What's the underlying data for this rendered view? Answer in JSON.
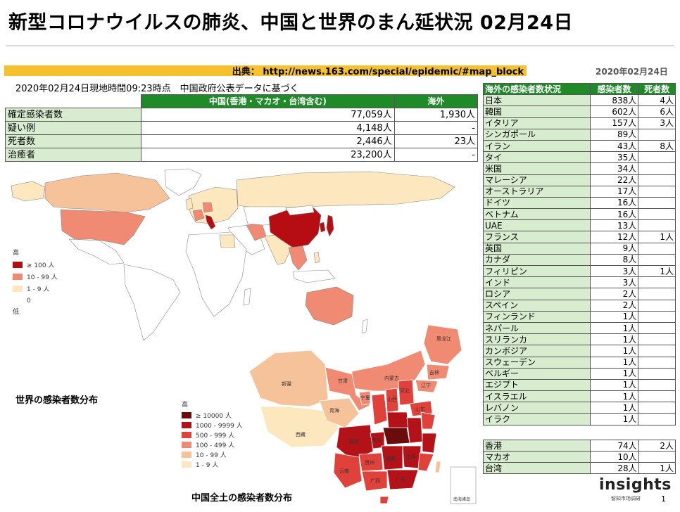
{
  "title": "新型コロナウイルスの肺炎、中国と世界のまん延状況 02月24日",
  "source": "出典： http://news.163.com/special/epidemic/#map_block",
  "date": "2020年02月24日",
  "subnote": "2020年02月24日現地時間09:23時点　中国政府公表データに基づく",
  "china_table": {
    "headers": [
      "中国(香港・マカオ・台湾含む)",
      "海外"
    ],
    "rows": [
      {
        "label": "確定感染者数",
        "china": "77,059人",
        "overseas": "1,930人"
      },
      {
        "label": "疑い例",
        "china": "4,148人",
        "overseas": "-"
      },
      {
        "label": "死者数",
        "china": "2,446人",
        "overseas": "23人"
      },
      {
        "label": "治癒者",
        "china": "23,200人",
        "overseas": "-"
      }
    ]
  },
  "world_table": {
    "headers": [
      "海外の感染者数状況",
      "感染者数",
      "死者数"
    ],
    "rows": [
      {
        "country": "日本",
        "cases": "838人",
        "deaths": "4人"
      },
      {
        "country": "韓国",
        "cases": "602人",
        "deaths": "6人"
      },
      {
        "country": "イタリア",
        "cases": "157人",
        "deaths": "3人"
      },
      {
        "country": "シンガポール",
        "cases": "89人",
        "deaths": ""
      },
      {
        "country": "イラン",
        "cases": "43人",
        "deaths": "8人"
      },
      {
        "country": "タイ",
        "cases": "35人",
        "deaths": ""
      },
      {
        "country": "米国",
        "cases": "34人",
        "deaths": ""
      },
      {
        "country": "マレーシア",
        "cases": "22人",
        "deaths": ""
      },
      {
        "country": "オーストラリア",
        "cases": "17人",
        "deaths": ""
      },
      {
        "country": "ドイツ",
        "cases": "16人",
        "deaths": ""
      },
      {
        "country": "ベトナム",
        "cases": "16人",
        "deaths": ""
      },
      {
        "country": "UAE",
        "cases": "13人",
        "deaths": ""
      },
      {
        "country": "フランス",
        "cases": "12人",
        "deaths": "1人"
      },
      {
        "country": "英国",
        "cases": "9人",
        "deaths": ""
      },
      {
        "country": "カナダ",
        "cases": "8人",
        "deaths": ""
      },
      {
        "country": "フィリピン",
        "cases": "3人",
        "deaths": "1人"
      },
      {
        "country": "インド",
        "cases": "3人",
        "deaths": ""
      },
      {
        "country": "ロシア",
        "cases": "2人",
        "deaths": ""
      },
      {
        "country": "スペイン",
        "cases": "2人",
        "deaths": ""
      },
      {
        "country": "フィンランド",
        "cases": "1人",
        "deaths": ""
      },
      {
        "country": "ネパール",
        "cases": "1人",
        "deaths": ""
      },
      {
        "country": "スリランカ",
        "cases": "1人",
        "deaths": ""
      },
      {
        "country": "カンボジア",
        "cases": "1人",
        "deaths": ""
      },
      {
        "country": "スウェーデン",
        "cases": "1人",
        "deaths": ""
      },
      {
        "country": "ベルギー",
        "cases": "1人",
        "deaths": ""
      },
      {
        "country": "エジプト",
        "cases": "1人",
        "deaths": ""
      },
      {
        "country": "イスラエル",
        "cases": "1人",
        "deaths": ""
      },
      {
        "country": "レバノン",
        "cases": "1人",
        "deaths": ""
      },
      {
        "country": "イラク",
        "cases": "1人",
        "deaths": ""
      }
    ]
  },
  "hk_table": {
    "rows": [
      {
        "region": "香港",
        "cases": "74人",
        "deaths": "2人"
      },
      {
        "region": "マカオ",
        "cases": "10人",
        "deaths": ""
      },
      {
        "region": "台湾",
        "cases": "28人",
        "deaths": "1人"
      }
    ]
  },
  "world_map": {
    "caption": "世界の感染者数分布",
    "legend_high": "高",
    "legend_low": "低",
    "legend": [
      {
        "label": "≥ 100 人",
        "color": "#b50d12"
      },
      {
        "label": "10 - 99 人",
        "color": "#f08a72"
      },
      {
        "label": "1 - 9 人",
        "color": "#fde7bf"
      },
      {
        "label": "0",
        "color": "#ffffff"
      }
    ]
  },
  "china_map": {
    "caption": "中国全土の感染者数分布",
    "legend_high": "高",
    "legend": [
      {
        "label": "≥ 10000 人",
        "color": "#6b0c0c"
      },
      {
        "label": "1000 - 9999 人",
        "color": "#b31219"
      },
      {
        "label": "500 - 999 人",
        "color": "#e0413a"
      },
      {
        "label": "100 - 499 人",
        "color": "#f08a72"
      },
      {
        "label": "10 - 99 人",
        "color": "#f6c29a"
      },
      {
        "label": "1 - 9 人",
        "color": "#fde7bf"
      }
    ],
    "provinces": [
      "新疆",
      "西藏",
      "青海",
      "甘肃",
      "内蒙古",
      "黑龙江",
      "吉林",
      "辽宁",
      "宁夏",
      "山西",
      "河北",
      "山东",
      "四川",
      "重庆",
      "湖南",
      "江西",
      "广东",
      "广西",
      "云南",
      "贵州"
    ],
    "inset_label": "南海诸岛"
  },
  "brand": {
    "name": "insights",
    "sub": "智知市场调研",
    "page": "1"
  }
}
